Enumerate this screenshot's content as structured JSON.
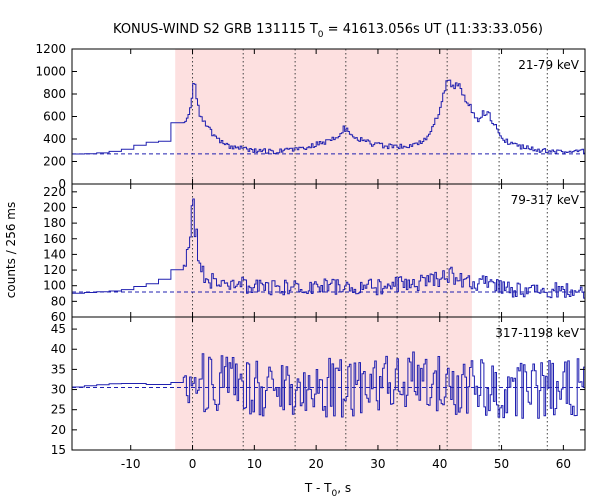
{
  "title_prefix": "KONUS-WIND S2 GRB 131115 T",
  "title_sub": "0",
  "title_suffix": " = 41613.056s UT (11:33:33.056)",
  "ylabel": "counts / 256 ms",
  "xlabel_prefix": "T - T",
  "xlabel_sub": "0",
  "xlabel_suffix": ", s",
  "chart_data": {
    "type": "line",
    "style": "histogram-step",
    "xlim": [
      -19.5,
      63.5
    ],
    "xticks": [
      -10,
      0,
      10,
      20,
      30,
      40,
      50,
      60
    ],
    "shaded_interval": [
      -2.8,
      45.2
    ],
    "shaded_color": "#fde0e0",
    "vlines": [
      0,
      8.2,
      16.6,
      24.8,
      33.1,
      41.2,
      49.6,
      57.4
    ],
    "line_color": "#2020b0",
    "panels": [
      {
        "label": "21-79 keV",
        "ylim": [
          0,
          1200
        ],
        "yticks": [
          0,
          200,
          400,
          600,
          800,
          1000,
          1200
        ],
        "background_level": 268,
        "series": [
          {
            "x": -19.5,
            "y": 265
          },
          {
            "x": -15.5,
            "y": 270
          },
          {
            "x": -11,
            "y": 300
          },
          {
            "x": -7,
            "y": 370
          },
          {
            "x": -4.5,
            "y": 380
          },
          {
            "x": -3,
            "y": 540
          },
          {
            "x": -1,
            "y": 560
          },
          {
            "x": -0.3,
            "y": 700
          },
          {
            "x": 0,
            "y": 800
          },
          {
            "x": 0.3,
            "y": 980
          },
          {
            "x": 0.7,
            "y": 760
          },
          {
            "x": 1.2,
            "y": 620
          },
          {
            "x": 2,
            "y": 540
          },
          {
            "x": 3,
            "y": 470
          },
          {
            "x": 4,
            "y": 400
          },
          {
            "x": 5,
            "y": 360
          },
          {
            "x": 6,
            "y": 330
          },
          {
            "x": 8,
            "y": 320
          },
          {
            "x": 10,
            "y": 300
          },
          {
            "x": 13,
            "y": 290
          },
          {
            "x": 16,
            "y": 300
          },
          {
            "x": 18,
            "y": 320
          },
          {
            "x": 20,
            "y": 350
          },
          {
            "x": 22,
            "y": 380
          },
          {
            "x": 23.5,
            "y": 420
          },
          {
            "x": 24.5,
            "y": 500
          },
          {
            "x": 25.5,
            "y": 450
          },
          {
            "x": 27,
            "y": 400
          },
          {
            "x": 29,
            "y": 360
          },
          {
            "x": 31,
            "y": 340
          },
          {
            "x": 33,
            "y": 330
          },
          {
            "x": 35,
            "y": 340
          },
          {
            "x": 37,
            "y": 380
          },
          {
            "x": 38.5,
            "y": 450
          },
          {
            "x": 39.5,
            "y": 580
          },
          {
            "x": 40.5,
            "y": 740
          },
          {
            "x": 41.2,
            "y": 970
          },
          {
            "x": 42,
            "y": 840
          },
          {
            "x": 43,
            "y": 900
          },
          {
            "x": 44,
            "y": 750
          },
          {
            "x": 45,
            "y": 680
          },
          {
            "x": 46,
            "y": 560
          },
          {
            "x": 47,
            "y": 640
          },
          {
            "x": 48,
            "y": 620
          },
          {
            "x": 48.8,
            "y": 540
          },
          {
            "x": 49.5,
            "y": 440
          },
          {
            "x": 50.5,
            "y": 390
          },
          {
            "x": 52,
            "y": 350
          },
          {
            "x": 54,
            "y": 320
          },
          {
            "x": 56,
            "y": 300
          },
          {
            "x": 58,
            "y": 290
          },
          {
            "x": 60,
            "y": 285
          },
          {
            "x": 62,
            "y": 290
          },
          {
            "x": 63.5,
            "y": 290
          }
        ]
      },
      {
        "label": "79-317 keV",
        "ylim": [
          60,
          230
        ],
        "yticks": [
          60,
          80,
          100,
          120,
          140,
          160,
          180,
          200,
          220
        ],
        "background_level": 92,
        "series": [
          {
            "x": -19.5,
            "y": 90
          },
          {
            "x": -15,
            "y": 92
          },
          {
            "x": -11,
            "y": 94
          },
          {
            "x": -8,
            "y": 100
          },
          {
            "x": -5,
            "y": 105
          },
          {
            "x": -3,
            "y": 118
          },
          {
            "x": -1.5,
            "y": 125
          },
          {
            "x": -0.3,
            "y": 150
          },
          {
            "x": 0,
            "y": 210
          },
          {
            "x": 0.4,
            "y": 175
          },
          {
            "x": 1,
            "y": 140
          },
          {
            "x": 1.8,
            "y": 115
          },
          {
            "x": 3,
            "y": 108
          },
          {
            "x": 5,
            "y": 102
          },
          {
            "x": 8,
            "y": 100
          },
          {
            "x": 12,
            "y": 98
          },
          {
            "x": 16,
            "y": 98
          },
          {
            "x": 20,
            "y": 98
          },
          {
            "x": 24,
            "y": 100
          },
          {
            "x": 28,
            "y": 98
          },
          {
            "x": 32,
            "y": 100
          },
          {
            "x": 36,
            "y": 104
          },
          {
            "x": 40,
            "y": 110
          },
          {
            "x": 42,
            "y": 114
          },
          {
            "x": 44,
            "y": 108
          },
          {
            "x": 46,
            "y": 104
          },
          {
            "x": 48,
            "y": 102
          },
          {
            "x": 52,
            "y": 96
          },
          {
            "x": 56,
            "y": 94
          },
          {
            "x": 60,
            "y": 93
          },
          {
            "x": 63.5,
            "y": 93
          }
        ]
      },
      {
        "label": "317-1198 keV",
        "ylim": [
          15,
          48
        ],
        "yticks": [
          15,
          20,
          25,
          30,
          35,
          40,
          45
        ],
        "background_level": 30.5,
        "series": [
          {
            "x": -19.5,
            "y": 30.5
          },
          {
            "x": -16,
            "y": 31
          },
          {
            "x": -12,
            "y": 31.5
          },
          {
            "x": -8,
            "y": 31.5
          },
          {
            "x": -5,
            "y": 31
          },
          {
            "x": -3,
            "y": 32
          },
          {
            "x": -1,
            "y": 31
          },
          {
            "x": 1,
            "y": 32
          },
          {
            "x": 5,
            "y": 31
          },
          {
            "x": 10,
            "y": 30
          },
          {
            "x": 15,
            "y": 31
          },
          {
            "x": 20,
            "y": 31
          },
          {
            "x": 25,
            "y": 30
          },
          {
            "x": 30,
            "y": 31
          },
          {
            "x": 35,
            "y": 32
          },
          {
            "x": 40,
            "y": 31
          },
          {
            "x": 45,
            "y": 31
          },
          {
            "x": 50,
            "y": 30
          },
          {
            "x": 55,
            "y": 30
          },
          {
            "x": 60,
            "y": 30.5
          },
          {
            "x": 63.5,
            "y": 30.5
          }
        ]
      }
    ]
  }
}
